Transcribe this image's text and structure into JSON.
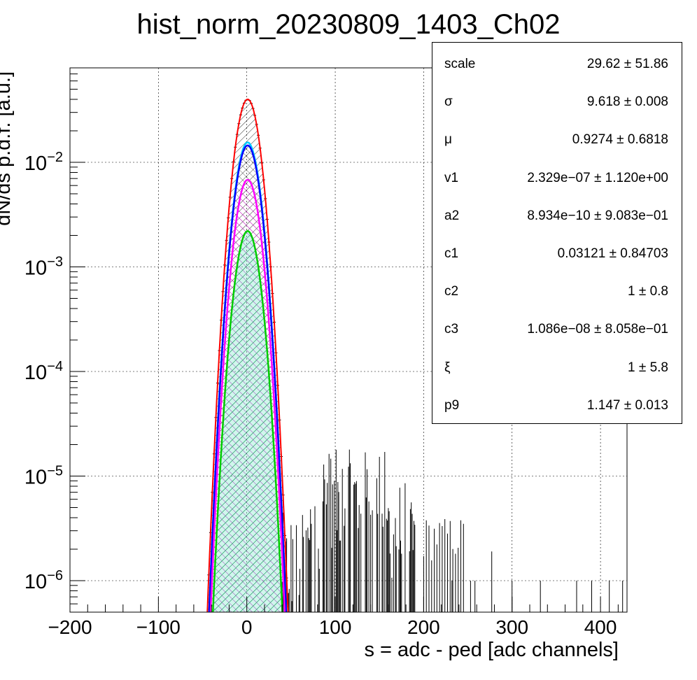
{
  "chart_data": {
    "type": "line",
    "title": "hist_norm_20230809_1403_Ch02",
    "xlabel": "s = adc - ped [adc channels]",
    "ylabel": "dN/ds p.d.f. [a.u.]",
    "xlim": [
      -200,
      430
    ],
    "ylim": [
      5e-07,
      0.08
    ],
    "y_scale": "log",
    "grid": true,
    "x_ticks": [
      "−200",
      "−100",
      "0",
      "100",
      "200",
      "300",
      "400"
    ],
    "x_tick_values": [
      -200,
      -100,
      0,
      100,
      200,
      300,
      400
    ],
    "y_ticks": [
      {
        "value": 1e-06,
        "base": "10",
        "exp": "−6"
      },
      {
        "value": 1e-05,
        "base": "10",
        "exp": "−5"
      },
      {
        "value": 0.0001,
        "base": "10",
        "exp": "−4"
      },
      {
        "value": 0.001,
        "base": "10",
        "exp": "−3"
      },
      {
        "value": 0.01,
        "base": "10",
        "exp": "−2"
      }
    ],
    "series": [
      {
        "color": "#ff0000",
        "peak": 0.04,
        "mu": 0.93,
        "sigma": 9.6,
        "style": "fit-total"
      },
      {
        "color": "#00ccff",
        "peak": 0.0155,
        "mu": 0.93,
        "sigma": 9.6,
        "style": "component"
      },
      {
        "color": "#0000ff",
        "peak": 0.0145,
        "mu": 0.93,
        "sigma": 9.6,
        "style": "component"
      },
      {
        "color": "#ff00ff",
        "peak": 0.0068,
        "mu": 0.93,
        "sigma": 9.6,
        "style": "component"
      },
      {
        "color": "#00cc00",
        "peak": 0.0022,
        "mu": 0.93,
        "sigma": 9.6,
        "style": "component"
      }
    ],
    "histogram": {
      "color": "#000000",
      "peak": 0.04,
      "tail_range": [
        40,
        430
      ],
      "tail_level_range": [
        1e-06,
        2e-05
      ]
    }
  },
  "stats": [
    {
      "name": "scale",
      "value": "29.62 ± 51.86"
    },
    {
      "name": "σ",
      "value": "9.618 ± 0.008"
    },
    {
      "name": "μ",
      "value": "0.9274 ± 0.6818"
    },
    {
      "name": "v1",
      "value": "2.329e−07 ± 1.120e+00"
    },
    {
      "name": "a2",
      "value": "8.934e−10 ± 9.083e−01"
    },
    {
      "name": "c1",
      "value": "0.03121 ± 0.84703"
    },
    {
      "name": "c2",
      "value": "1 ± 0.8"
    },
    {
      "name": "c3",
      "value": "1.086e−08 ± 8.058e−01"
    },
    {
      "name": "ξ",
      "value": "1 ± 5.8"
    },
    {
      "name": "p9",
      "value": "1.147 ± 0.013"
    }
  ]
}
